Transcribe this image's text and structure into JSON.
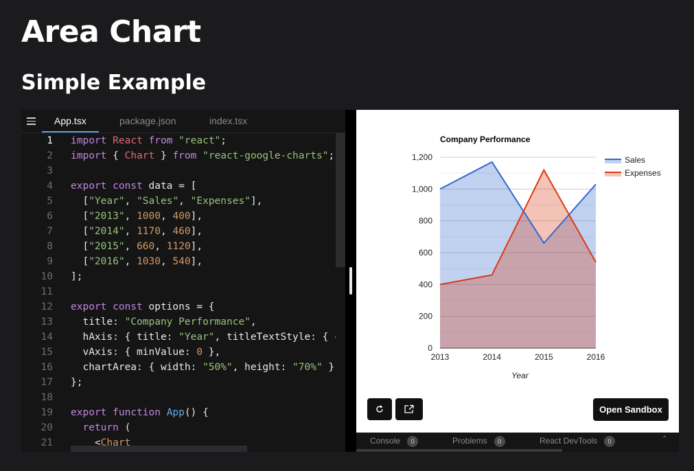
{
  "page": {
    "title": "Area Chart",
    "subtitle": "Simple Example"
  },
  "editor": {
    "tabs": [
      {
        "label": "App.tsx",
        "active": true
      },
      {
        "label": "package.json",
        "active": false
      },
      {
        "label": "index.tsx",
        "active": false
      }
    ],
    "current_line": 1,
    "lines": [
      [
        [
          "kw",
          "import"
        ],
        [
          "t",
          " "
        ],
        [
          "id",
          "React"
        ],
        [
          "t",
          " "
        ],
        [
          "kw",
          "from"
        ],
        [
          "t",
          " "
        ],
        [
          "str",
          "\"react\""
        ],
        [
          "t",
          ";"
        ]
      ],
      [
        [
          "kw",
          "import"
        ],
        [
          "t",
          " { "
        ],
        [
          "id",
          "Chart"
        ],
        [
          "t",
          " } "
        ],
        [
          "kw",
          "from"
        ],
        [
          "t",
          " "
        ],
        [
          "str",
          "\"react-google-charts\""
        ],
        [
          "t",
          ";"
        ]
      ],
      [],
      [
        [
          "kw",
          "export const"
        ],
        [
          "t",
          " data = ["
        ]
      ],
      [
        [
          "t",
          "  ["
        ],
        [
          "str",
          "\"Year\""
        ],
        [
          "t",
          ", "
        ],
        [
          "str",
          "\"Sales\""
        ],
        [
          "t",
          ", "
        ],
        [
          "str",
          "\"Expenses\""
        ],
        [
          "t",
          "],"
        ]
      ],
      [
        [
          "t",
          "  ["
        ],
        [
          "str",
          "\"2013\""
        ],
        [
          "t",
          ", "
        ],
        [
          "num",
          "1000"
        ],
        [
          "t",
          ", "
        ],
        [
          "num",
          "400"
        ],
        [
          "t",
          "],"
        ]
      ],
      [
        [
          "t",
          "  ["
        ],
        [
          "str",
          "\"2014\""
        ],
        [
          "t",
          ", "
        ],
        [
          "num",
          "1170"
        ],
        [
          "t",
          ", "
        ],
        [
          "num",
          "460"
        ],
        [
          "t",
          "],"
        ]
      ],
      [
        [
          "t",
          "  ["
        ],
        [
          "str",
          "\"2015\""
        ],
        [
          "t",
          ", "
        ],
        [
          "num",
          "660"
        ],
        [
          "t",
          ", "
        ],
        [
          "num",
          "1120"
        ],
        [
          "t",
          "],"
        ]
      ],
      [
        [
          "t",
          "  ["
        ],
        [
          "str",
          "\"2016\""
        ],
        [
          "t",
          ", "
        ],
        [
          "num",
          "1030"
        ],
        [
          "t",
          ", "
        ],
        [
          "num",
          "540"
        ],
        [
          "t",
          "],"
        ]
      ],
      [
        [
          "t",
          "];"
        ]
      ],
      [],
      [
        [
          "kw",
          "export const"
        ],
        [
          "t",
          " options = {"
        ]
      ],
      [
        [
          "t",
          "  title: "
        ],
        [
          "str",
          "\"Company Performance\""
        ],
        [
          "t",
          ","
        ]
      ],
      [
        [
          "t",
          "  hAxis: { title: "
        ],
        [
          "str",
          "\"Year\""
        ],
        [
          "t",
          ", titleTextStyle: { c"
        ]
      ],
      [
        [
          "t",
          "  vAxis: { minValue: "
        ],
        [
          "num",
          "0"
        ],
        [
          "t",
          " },"
        ]
      ],
      [
        [
          "t",
          "  chartArea: { width: "
        ],
        [
          "str",
          "\"50%\""
        ],
        [
          "t",
          ", height: "
        ],
        [
          "str",
          "\"70%\""
        ],
        [
          "t",
          " },"
        ]
      ],
      [
        [
          "t",
          "};"
        ]
      ],
      [],
      [
        [
          "kw",
          "export function"
        ],
        [
          "t",
          " "
        ],
        [
          "fn",
          "App"
        ],
        [
          "t",
          "() {"
        ]
      ],
      [
        [
          "t",
          "  "
        ],
        [
          "kw",
          "return"
        ],
        [
          "t",
          " ("
        ]
      ],
      [
        [
          "t",
          "    <"
        ],
        [
          "tag",
          "Chart"
        ]
      ]
    ]
  },
  "preview": {
    "open_sandbox_label": "Open Sandbox",
    "refresh_icon": "refresh-icon",
    "open_new_window_icon": "external-link-icon"
  },
  "bottom_bar": {
    "tabs": [
      {
        "label": "Console",
        "count": "0"
      },
      {
        "label": "Problems",
        "count": "0"
      },
      {
        "label": "React DevTools",
        "count": "0"
      }
    ]
  },
  "chart_data": {
    "type": "area",
    "title": "Company Performance",
    "xlabel": "Year",
    "ylabel": "",
    "categories": [
      "2013",
      "2014",
      "2015",
      "2016"
    ],
    "series": [
      {
        "name": "Sales",
        "values": [
          1000,
          1170,
          660,
          1030
        ],
        "color": "#3366cc"
      },
      {
        "name": "Expenses",
        "values": [
          400,
          460,
          1120,
          540
        ],
        "color": "#dc3912"
      }
    ],
    "ylim": [
      0,
      1200
    ],
    "yticks": [
      "0",
      "200",
      "400",
      "600",
      "800",
      "1,000",
      "1,200"
    ],
    "grid": true,
    "legend": "right"
  }
}
